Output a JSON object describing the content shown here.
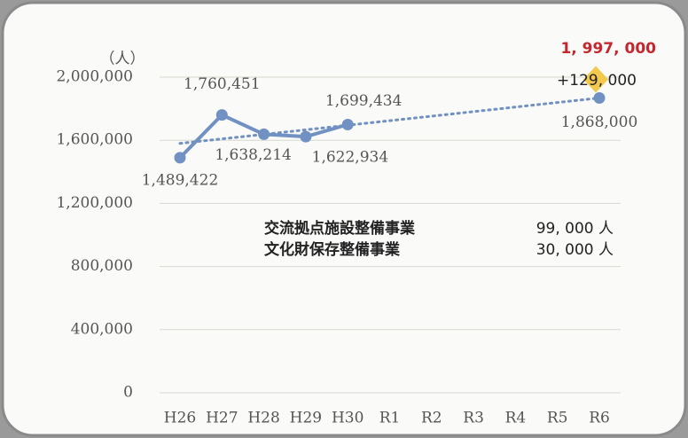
{
  "chart_data": {
    "type": "line",
    "y_label": "（人）",
    "categories": [
      "H26",
      "H27",
      "H28",
      "H29",
      "H30",
      "R1",
      "R2",
      "R3",
      "R4",
      "R5",
      "R6"
    ],
    "series": [
      {
        "color": "#7091c2",
        "values": [
          1489422,
          1760451,
          1638214,
          1622934,
          1699434,
          null,
          null,
          null,
          null,
          null,
          null
        ],
        "value_labels": [
          "1,489,422",
          "1,760,451",
          "1,638,214",
          "1,622,934",
          "1,699,434",
          null,
          null,
          null,
          null,
          null,
          null
        ]
      },
      {
        "color": "#7091c2",
        "values": [
          null,
          null,
          null,
          null,
          null,
          null,
          null,
          null,
          null,
          null,
          1868000
        ],
        "value_labels": [
          null,
          null,
          null,
          null,
          null,
          null,
          null,
          null,
          null,
          null,
          "1,868,000"
        ]
      },
      {
        "color": "#7091c2",
        "style": "dotted",
        "values": [
          1580000,
          1608800,
          1637600,
          1666400,
          1695200,
          1724000,
          1752800,
          1781600,
          1810400,
          1839200,
          1868000
        ]
      }
    ],
    "target": {
      "value": 1997000,
      "value_label": "1, 997, 000",
      "increase_label": "+129, 000",
      "color": "#c4272e",
      "marker_color": "#f2c94c"
    },
    "annotations": [
      [
        "交流拠点施設整備事業",
        "99, 000 人"
      ],
      [
        "文化財保存整備事業",
        "30, 000 人"
      ]
    ],
    "ylim": [
      0,
      2000000
    ],
    "yticks": [
      0,
      {
        "value": 400000,
        "label": "400,000"
      },
      {
        "value": 800000,
        "label": "800,000"
      },
      {
        "value": 1200000,
        "label": "1,200,000"
      },
      {
        "value": 1600000,
        "label": "1,600,000"
      },
      {
        "value": 2000000,
        "label": "2,000,000"
      }
    ],
    "grid": true
  }
}
